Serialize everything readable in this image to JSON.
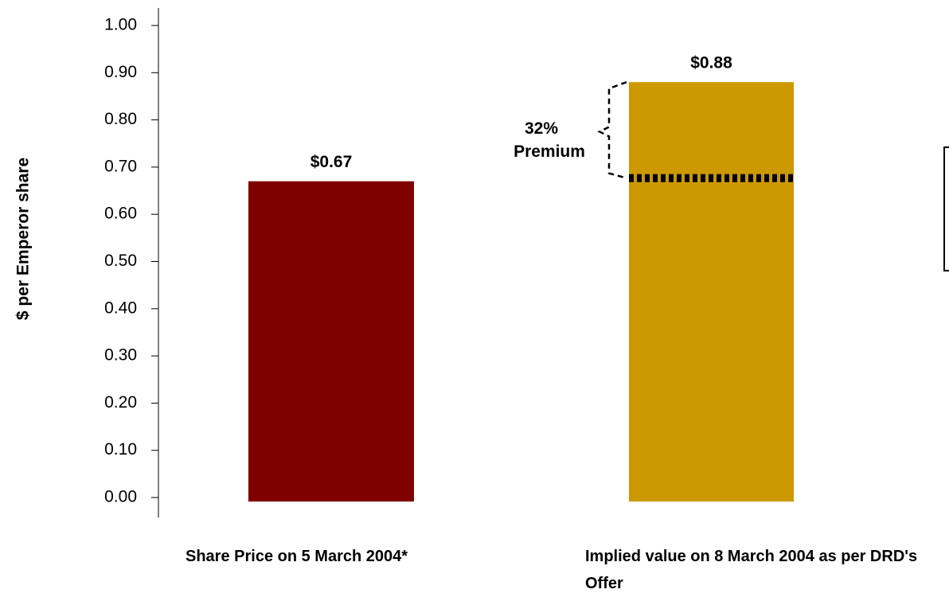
{
  "chart_data": {
    "type": "bar",
    "y_label": "$ per Emperor share",
    "categories": [
      "Share Price on 5 March 2004*",
      "Implied value on 8 March 2004 as per DRD's Offer"
    ],
    "values": [
      0.67,
      0.88
    ],
    "value_labels": [
      "$0.67",
      "$0.88"
    ],
    "colors": [
      "#800000",
      "#cc9900"
    ],
    "ylim": [
      0,
      1
    ],
    "yticks": [
      {
        "value": 0,
        "label": "0.00"
      },
      {
        "value": 0.1,
        "label": "0.10"
      },
      {
        "value": 0.2,
        "label": "0.20"
      },
      {
        "value": 0.3,
        "label": "0.30"
      },
      {
        "value": 0.4,
        "label": "0.40"
      },
      {
        "value": 0.5,
        "label": "0.50"
      },
      {
        "value": 0.6,
        "label": "0.60"
      },
      {
        "value": 0.7,
        "label": "0.70"
      },
      {
        "value": 0.8,
        "label": "0.80"
      },
      {
        "value": 0.9,
        "label": "0.90"
      },
      {
        "value": 1,
        "label": "1.00"
      }
    ],
    "annotation": [
      "32%",
      "Premium"
    ]
  }
}
